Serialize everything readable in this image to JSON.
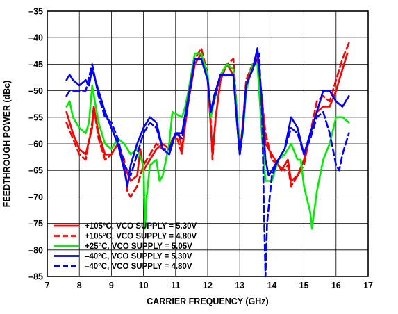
{
  "chart_data": {
    "type": "line",
    "title": "",
    "xlabel": "CARRIER FREQUENCY (GHz)",
    "ylabel": "FEEDTHROUGH POWER (dBc)",
    "xlim": [
      7,
      17
    ],
    "ylim": [
      -85,
      -35
    ],
    "x_ticks": [
      7,
      8,
      9,
      10,
      11,
      12,
      13,
      14,
      15,
      16,
      17
    ],
    "y_ticks": [
      -35,
      -40,
      -45,
      -50,
      -55,
      -60,
      -65,
      -70,
      -75,
      -80,
      -85
    ],
    "x_tick_labels": [
      "7",
      "8",
      "9",
      "10",
      "11",
      "12",
      "13",
      "14",
      "15",
      "16",
      "17"
    ],
    "y_tick_labels": [
      "–35",
      "–40",
      "–45",
      "–50",
      "–55",
      "–60",
      "–65",
      "–70",
      "–75",
      "–80",
      "–85"
    ],
    "grid": true,
    "legend_position": "bottom-left",
    "series": [
      {
        "name": "+105°C, VCO SUPPLY = 5.30V",
        "color": "#ff0000",
        "dash": "solid",
        "points": [
          [
            7.6,
            -54
          ],
          [
            7.8,
            -58
          ],
          [
            8.0,
            -61
          ],
          [
            8.2,
            -62
          ],
          [
            8.4,
            -57
          ],
          [
            8.45,
            -53
          ],
          [
            8.6,
            -58
          ],
          [
            8.8,
            -62
          ],
          [
            9.0,
            -62
          ],
          [
            9.2,
            -60
          ],
          [
            9.4,
            -64
          ],
          [
            9.6,
            -67
          ],
          [
            9.8,
            -66
          ],
          [
            9.9,
            -61
          ],
          [
            10.0,
            -65
          ],
          [
            10.2,
            -63
          ],
          [
            10.4,
            -61
          ],
          [
            10.6,
            -60
          ],
          [
            10.8,
            -61
          ],
          [
            10.9,
            -59
          ],
          [
            11.1,
            -58
          ],
          [
            11.2,
            -61
          ],
          [
            11.4,
            -52
          ],
          [
            11.6,
            -45
          ],
          [
            11.8,
            -43
          ],
          [
            12.0,
            -48
          ],
          [
            12.1,
            -57
          ],
          [
            12.15,
            -62
          ],
          [
            12.25,
            -55
          ],
          [
            12.4,
            -48
          ],
          [
            12.6,
            -45
          ],
          [
            12.8,
            -47
          ],
          [
            12.9,
            -55
          ],
          [
            13.0,
            -62
          ],
          [
            13.1,
            -56
          ],
          [
            13.2,
            -49
          ],
          [
            13.4,
            -45
          ],
          [
            13.55,
            -44
          ],
          [
            13.7,
            -52
          ],
          [
            13.8,
            -60
          ],
          [
            14.0,
            -62
          ],
          [
            14.2,
            -64
          ],
          [
            14.3,
            -65
          ],
          [
            14.5,
            -63
          ],
          [
            14.6,
            -67
          ],
          [
            14.8,
            -66
          ],
          [
            15.0,
            -63
          ],
          [
            15.2,
            -58
          ],
          [
            15.4,
            -54
          ],
          [
            15.6,
            -53
          ],
          [
            15.8,
            -53
          ],
          [
            16.0,
            -50
          ],
          [
            16.2,
            -46
          ],
          [
            16.35,
            -43
          ]
        ]
      },
      {
        "name": "+105°C, VCO SUPPLY = 4.80V",
        "color": "#ff0000",
        "dash": "dashed",
        "points": [
          [
            7.6,
            -56
          ],
          [
            7.8,
            -59
          ],
          [
            8.0,
            -62
          ],
          [
            8.2,
            -63
          ],
          [
            8.4,
            -56
          ],
          [
            8.45,
            -53
          ],
          [
            8.6,
            -59
          ],
          [
            8.8,
            -63
          ],
          [
            9.0,
            -62
          ],
          [
            9.2,
            -60
          ],
          [
            9.4,
            -63
          ],
          [
            9.5,
            -69
          ],
          [
            9.6,
            -70
          ],
          [
            9.8,
            -68
          ],
          [
            10.0,
            -64
          ],
          [
            10.2,
            -62
          ],
          [
            10.4,
            -60
          ],
          [
            10.6,
            -61
          ],
          [
            10.8,
            -62
          ],
          [
            11.0,
            -58
          ],
          [
            11.2,
            -62
          ],
          [
            11.4,
            -50
          ],
          [
            11.6,
            -44
          ],
          [
            11.8,
            -42
          ],
          [
            12.0,
            -47
          ],
          [
            12.1,
            -56
          ],
          [
            12.15,
            -63
          ],
          [
            12.25,
            -55
          ],
          [
            12.4,
            -48
          ],
          [
            12.6,
            -45
          ],
          [
            12.8,
            -44
          ],
          [
            12.9,
            -53
          ],
          [
            13.0,
            -62
          ],
          [
            13.1,
            -56
          ],
          [
            13.2,
            -48
          ],
          [
            13.4,
            -45
          ],
          [
            13.55,
            -43
          ],
          [
            13.7,
            -52
          ],
          [
            13.8,
            -58
          ],
          [
            14.0,
            -63
          ],
          [
            14.2,
            -64
          ],
          [
            14.4,
            -65
          ],
          [
            14.5,
            -64
          ],
          [
            14.6,
            -68
          ],
          [
            14.8,
            -66
          ],
          [
            15.0,
            -64
          ],
          [
            15.2,
            -58
          ],
          [
            15.4,
            -52
          ],
          [
            15.6,
            -51
          ],
          [
            15.8,
            -52
          ],
          [
            16.0,
            -48
          ],
          [
            16.2,
            -44
          ],
          [
            16.4,
            -41
          ]
        ]
      },
      {
        "name": "+25°C, VCO SUPPLY = 5.05V",
        "color": "#00ee00",
        "dash": "solid",
        "points": [
          [
            7.6,
            -53
          ],
          [
            7.7,
            -52
          ],
          [
            7.8,
            -55
          ],
          [
            8.0,
            -57
          ],
          [
            8.2,
            -58
          ],
          [
            8.3,
            -56
          ],
          [
            8.4,
            -49
          ],
          [
            8.6,
            -56
          ],
          [
            8.8,
            -60
          ],
          [
            9.0,
            -61
          ],
          [
            9.2,
            -59
          ],
          [
            9.4,
            -60
          ],
          [
            9.6,
            -62
          ],
          [
            9.8,
            -61
          ],
          [
            10.0,
            -64
          ],
          [
            10.05,
            -76
          ],
          [
            10.1,
            -70
          ],
          [
            10.2,
            -64
          ],
          [
            10.4,
            -63
          ],
          [
            10.5,
            -67
          ],
          [
            10.6,
            -66
          ],
          [
            10.8,
            -60
          ],
          [
            10.9,
            -54
          ],
          [
            11.2,
            -55
          ],
          [
            11.3,
            -53
          ],
          [
            11.4,
            -50
          ],
          [
            11.6,
            -43
          ],
          [
            11.8,
            -43
          ],
          [
            12.0,
            -47
          ],
          [
            12.1,
            -55
          ],
          [
            12.2,
            -52
          ],
          [
            12.4,
            -47
          ],
          [
            12.6,
            -45
          ],
          [
            12.8,
            -46
          ],
          [
            12.9,
            -53
          ],
          [
            13.0,
            -61
          ],
          [
            13.1,
            -58
          ],
          [
            13.2,
            -50
          ],
          [
            13.4,
            -45
          ],
          [
            13.55,
            -45
          ],
          [
            13.7,
            -59
          ],
          [
            13.8,
            -67
          ],
          [
            14.0,
            -67
          ],
          [
            14.2,
            -63
          ],
          [
            14.4,
            -62
          ],
          [
            14.6,
            -60
          ],
          [
            14.8,
            -63
          ],
          [
            14.9,
            -63
          ],
          [
            15.0,
            -68
          ],
          [
            15.2,
            -73
          ],
          [
            15.25,
            -76
          ],
          [
            15.4,
            -69
          ],
          [
            15.6,
            -63
          ],
          [
            15.8,
            -60
          ],
          [
            16.0,
            -55
          ],
          [
            16.2,
            -55
          ],
          [
            16.4,
            -56
          ]
        ]
      },
      {
        "name": "–40°C, VCO SUPPLY = 5.30V",
        "color": "#0000ff",
        "dash": "solid",
        "points": [
          [
            7.6,
            -48
          ],
          [
            7.7,
            -47
          ],
          [
            7.8,
            -48
          ],
          [
            8.0,
            -49
          ],
          [
            8.2,
            -48
          ],
          [
            8.3,
            -49
          ],
          [
            8.4,
            -46
          ],
          [
            8.6,
            -50
          ],
          [
            8.8,
            -54
          ],
          [
            9.0,
            -57
          ],
          [
            9.2,
            -60
          ],
          [
            9.4,
            -65
          ],
          [
            9.5,
            -68
          ],
          [
            9.6,
            -64
          ],
          [
            9.8,
            -60
          ],
          [
            10.0,
            -57
          ],
          [
            10.2,
            -55
          ],
          [
            10.4,
            -56
          ],
          [
            10.6,
            -61
          ],
          [
            10.8,
            -62
          ],
          [
            11.0,
            -58
          ],
          [
            11.2,
            -58
          ],
          [
            11.4,
            -51
          ],
          [
            11.6,
            -44
          ],
          [
            11.8,
            -44
          ],
          [
            12.0,
            -48
          ],
          [
            12.1,
            -54
          ],
          [
            12.2,
            -51
          ],
          [
            12.4,
            -47
          ],
          [
            12.6,
            -47
          ],
          [
            12.8,
            -47
          ],
          [
            12.9,
            -55
          ],
          [
            13.0,
            -62
          ],
          [
            13.1,
            -57
          ],
          [
            13.2,
            -49
          ],
          [
            13.4,
            -46
          ],
          [
            13.55,
            -42
          ],
          [
            13.65,
            -49
          ],
          [
            13.8,
            -63
          ],
          [
            13.9,
            -66
          ],
          [
            14.0,
            -65
          ],
          [
            14.2,
            -63
          ],
          [
            14.4,
            -61
          ],
          [
            14.6,
            -55
          ],
          [
            14.8,
            -57
          ],
          [
            15.0,
            -62
          ],
          [
            15.2,
            -58
          ],
          [
            15.4,
            -54
          ],
          [
            15.6,
            -50
          ],
          [
            15.8,
            -50
          ],
          [
            16.0,
            -52
          ],
          [
            16.2,
            -53
          ],
          [
            16.4,
            -51
          ]
        ]
      },
      {
        "name": "–40°C, VCO SUPPLY = 4.80V",
        "color": "#0000ff",
        "dash": "dashed",
        "points": [
          [
            7.6,
            -51
          ],
          [
            7.7,
            -50
          ],
          [
            7.8,
            -50
          ],
          [
            8.0,
            -50
          ],
          [
            8.2,
            -50
          ],
          [
            8.4,
            -45
          ],
          [
            8.6,
            -51
          ],
          [
            8.8,
            -55
          ],
          [
            9.0,
            -56
          ],
          [
            9.2,
            -59
          ],
          [
            9.4,
            -64
          ],
          [
            9.6,
            -66
          ],
          [
            9.8,
            -62
          ],
          [
            10.0,
            -58
          ],
          [
            10.2,
            -56
          ],
          [
            10.4,
            -57
          ],
          [
            10.6,
            -61
          ],
          [
            10.8,
            -61
          ],
          [
            11.0,
            -58
          ],
          [
            11.2,
            -59
          ],
          [
            11.4,
            -52
          ],
          [
            11.6,
            -44
          ],
          [
            11.8,
            -44
          ],
          [
            12.0,
            -48
          ],
          [
            12.1,
            -54
          ],
          [
            12.2,
            -52
          ],
          [
            12.4,
            -47
          ],
          [
            12.6,
            -47
          ],
          [
            12.8,
            -47
          ],
          [
            12.9,
            -55
          ],
          [
            13.0,
            -62
          ],
          [
            13.1,
            -57
          ],
          [
            13.2,
            -49
          ],
          [
            13.4,
            -46
          ],
          [
            13.6,
            -43
          ],
          [
            13.7,
            -55
          ],
          [
            13.75,
            -72
          ],
          [
            13.8,
            -85
          ],
          [
            13.85,
            -75
          ],
          [
            14.0,
            -66
          ],
          [
            14.2,
            -63
          ],
          [
            14.4,
            -61
          ],
          [
            14.6,
            -57
          ],
          [
            14.8,
            -58
          ],
          [
            15.0,
            -62
          ],
          [
            15.2,
            -59
          ],
          [
            15.4,
            -55
          ],
          [
            15.6,
            -54
          ],
          [
            15.8,
            -58
          ],
          [
            16.0,
            -64
          ],
          [
            16.1,
            -65
          ],
          [
            16.2,
            -62
          ],
          [
            16.4,
            -58
          ]
        ]
      }
    ]
  }
}
